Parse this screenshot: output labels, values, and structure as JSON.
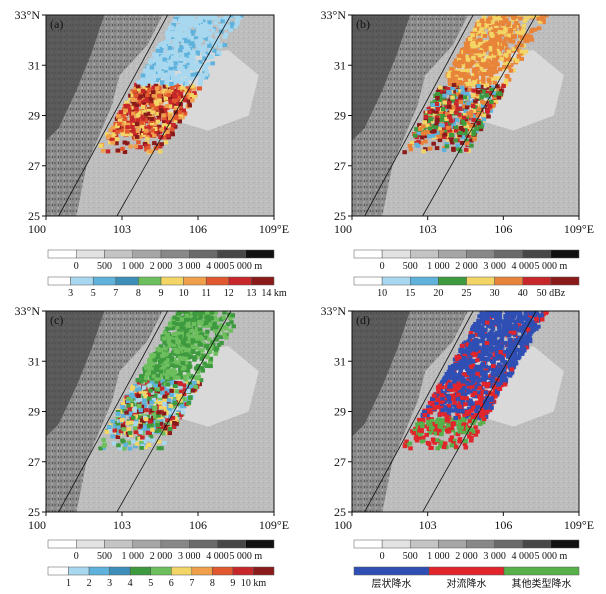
{
  "chart_data": [
    {
      "type": "heatmap",
      "panel_label": "(a)",
      "lon_ticks": [
        "100",
        "103",
        "106",
        "109°E"
      ],
      "lat_ticks": [
        "33°N",
        "31",
        "29",
        "27",
        "25"
      ],
      "xlim": [
        100,
        109
      ],
      "ylim": [
        25,
        33
      ],
      "terrain_colorbar": {
        "labels": [
          "0",
          "500",
          "1 000",
          "2 000",
          "3 000",
          "4 000",
          "5 000 m"
        ],
        "colors": [
          "#ffffff",
          "#e2e2e2",
          "#c4c4c4",
          "#a6a6a6",
          "#888888",
          "#6a6a6a",
          "#474747",
          "#111111"
        ]
      },
      "data_colorbar": {
        "labels": [
          "3",
          "5",
          "7",
          "8",
          "9",
          "10",
          "11",
          "12",
          "13",
          "14 km"
        ],
        "colors": [
          "#ffffff",
          "#a8d8ef",
          "#5fb2dc",
          "#3d8fba",
          "#6dbf5d",
          "#f3d566",
          "#f0a04a",
          "#e1572e",
          "#c7262a",
          "#8b1a1a"
        ]
      },
      "field": "storm-top-height"
    },
    {
      "type": "heatmap",
      "panel_label": "(b)",
      "lon_ticks": [
        "100",
        "103",
        "106",
        "109°E"
      ],
      "lat_ticks": [
        "33°N",
        "31",
        "29",
        "27",
        "25"
      ],
      "xlim": [
        100,
        109
      ],
      "ylim": [
        25,
        33
      ],
      "terrain_colorbar": {
        "labels": [
          "0",
          "500",
          "1 000",
          "2 000",
          "3 000",
          "4 000",
          "5 000 m"
        ],
        "colors": [
          "#ffffff",
          "#e2e2e2",
          "#c4c4c4",
          "#a6a6a6",
          "#888888",
          "#6a6a6a",
          "#474747",
          "#111111"
        ]
      },
      "data_colorbar": {
        "labels": [
          "10",
          "15",
          "20",
          "25",
          "30",
          "40",
          "50 dBz"
        ],
        "colors": [
          "#ffffff",
          "#a8d8ef",
          "#5fb2dc",
          "#3e9a3e",
          "#f3d566",
          "#e8843a",
          "#c7262a",
          "#8b1a1a"
        ]
      },
      "field": "reflectivity"
    },
    {
      "type": "heatmap",
      "panel_label": "(c)",
      "lon_ticks": [
        "100",
        "103",
        "106",
        "109°E"
      ],
      "lat_ticks": [
        "33°N",
        "31",
        "29",
        "27",
        "25"
      ],
      "xlim": [
        100,
        109
      ],
      "ylim": [
        25,
        33
      ],
      "terrain_colorbar": {
        "labels": [
          "0",
          "500",
          "1 000",
          "2 000",
          "3 000",
          "4 000",
          "5 000 m"
        ],
        "colors": [
          "#ffffff",
          "#e2e2e2",
          "#c4c4c4",
          "#a6a6a6",
          "#888888",
          "#6a6a6a",
          "#474747",
          "#111111"
        ]
      },
      "data_colorbar": {
        "labels": [
          "1",
          "2",
          "3",
          "4",
          "5",
          "6",
          "7",
          "8",
          "9",
          "10 km"
        ],
        "colors": [
          "#ffffff",
          "#a8d8ef",
          "#5fb2dc",
          "#3d8fba",
          "#3e9a3e",
          "#6dbf5d",
          "#f3d566",
          "#f0a04a",
          "#e1572e",
          "#c7262a",
          "#8b1a1a"
        ]
      },
      "field": "freezing-level-height"
    },
    {
      "type": "heatmap",
      "panel_label": "(d)",
      "lon_ticks": [
        "100",
        "103",
        "106",
        "109°E"
      ],
      "lat_ticks": [
        "33°N",
        "31",
        "29",
        "27",
        "25"
      ],
      "xlim": [
        100,
        109
      ],
      "ylim": [
        25,
        33
      ],
      "terrain_colorbar": {
        "labels": [
          "0",
          "500",
          "1 000",
          "2 000",
          "3 000",
          "4 000",
          "5 000 m"
        ],
        "colors": [
          "#ffffff",
          "#e2e2e2",
          "#c4c4c4",
          "#a6a6a6",
          "#888888",
          "#6a6a6a",
          "#474747",
          "#111111"
        ]
      },
      "categorical_legend": [
        {
          "label": "层状降水",
          "color": "#2f4fb5"
        },
        {
          "label": "对流降水",
          "color": "#e2242b"
        },
        {
          "label": "其他类型降水",
          "color": "#56b14a"
        }
      ],
      "field": "precipitation-type"
    }
  ]
}
